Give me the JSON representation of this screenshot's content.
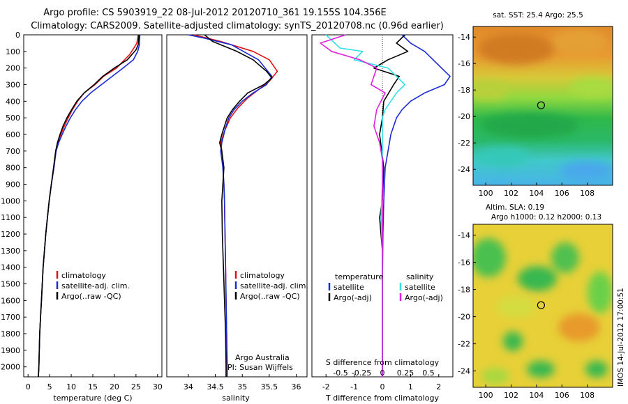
{
  "title_line1": "Argo profile: CS 5903919_22 08-Jul-2012 20120710_361 19.155S 104.356E",
  "title_line2": "Climatology: CARS2009. Satellite-adjusted climatology: synTS_20120708.nc (0.96d earlier)",
  "side_stamp": "IMOS 14-Jul-2012 17:00:51",
  "depth_ticks": [
    0,
    100,
    200,
    300,
    400,
    500,
    600,
    700,
    800,
    900,
    1000,
    1100,
    1200,
    1300,
    1400,
    1500,
    1600,
    1700,
    1800,
    1900,
    2000
  ],
  "colors": {
    "climatology": "#dd1111",
    "satellite": "#1a2ad6",
    "argo": "#000000",
    "salinity_sat": "#33e0e8",
    "salinity_argo": "#e020e0"
  },
  "chart_data": [
    {
      "type": "line",
      "xlabel": "temperature (deg C)",
      "ylabel": "",
      "xlim": [
        -1,
        31
      ],
      "ylim": [
        2060,
        0
      ],
      "x_ticks": [
        0,
        5,
        10,
        15,
        20,
        25,
        30
      ],
      "legend": [
        "climatology",
        "satellite-adj. clim.",
        "Argo(..raw -QC)"
      ],
      "series": [
        {
          "name": "climatology",
          "color": "#dd1111",
          "points": [
            [
              25.5,
              0
            ],
            [
              25.2,
              50
            ],
            [
              24.5,
              80
            ],
            [
              23.5,
              120
            ],
            [
              20.5,
              200
            ],
            [
              17.5,
              250
            ],
            [
              15.5,
              300
            ],
            [
              13.0,
              350
            ],
            [
              11.5,
              400
            ],
            [
              10.3,
              450
            ],
            [
              9.3,
              500
            ],
            [
              8.4,
              550
            ],
            [
              7.6,
              600
            ],
            [
              6.9,
              650
            ],
            [
              6.4,
              700
            ],
            [
              6.0,
              800
            ],
            [
              5.4,
              900
            ],
            [
              4.9,
              1000
            ],
            [
              4.5,
              1100
            ],
            [
              4.1,
              1200
            ],
            [
              3.8,
              1300
            ],
            [
              3.5,
              1400
            ],
            [
              3.3,
              1500
            ],
            [
              3.1,
              1600
            ],
            [
              2.9,
              1700
            ],
            [
              2.7,
              1800
            ],
            [
              2.6,
              1900
            ],
            [
              2.5,
              2000
            ],
            [
              2.4,
              2060
            ]
          ]
        },
        {
          "name": "satellite-adj. clim.",
          "color": "#1a2ad6",
          "points": [
            [
              25.9,
              0
            ],
            [
              25.8,
              60
            ],
            [
              25.4,
              100
            ],
            [
              24.4,
              150
            ],
            [
              22.0,
              200
            ],
            [
              19.5,
              250
            ],
            [
              17.0,
              300
            ],
            [
              14.5,
              350
            ],
            [
              12.5,
              400
            ],
            [
              11.0,
              450
            ],
            [
              9.8,
              500
            ],
            [
              8.8,
              550
            ],
            [
              7.9,
              600
            ],
            [
              7.1,
              650
            ],
            [
              6.5,
              700
            ],
            [
              6.0,
              800
            ],
            [
              5.4,
              900
            ],
            [
              4.9,
              1000
            ],
            [
              4.5,
              1100
            ],
            [
              4.1,
              1200
            ],
            [
              3.8,
              1300
            ],
            [
              3.5,
              1400
            ],
            [
              3.3,
              1500
            ],
            [
              3.1,
              1600
            ],
            [
              2.9,
              1700
            ],
            [
              2.7,
              1800
            ],
            [
              2.6,
              1900
            ],
            [
              2.5,
              2000
            ],
            [
              2.4,
              2060
            ]
          ]
        },
        {
          "name": "Argo(..raw -QC)",
          "color": "#000000",
          "points": [
            [
              25.7,
              0
            ],
            [
              25.5,
              60
            ],
            [
              25.0,
              90
            ],
            [
              23.0,
              150
            ],
            [
              20.0,
              200
            ],
            [
              17.3,
              250
            ],
            [
              15.3,
              300
            ],
            [
              13.0,
              350
            ],
            [
              11.3,
              400
            ],
            [
              10.1,
              450
            ],
            [
              9.0,
              500
            ],
            [
              8.1,
              550
            ],
            [
              7.4,
              600
            ],
            [
              6.8,
              650
            ],
            [
              6.4,
              700
            ],
            [
              5.9,
              800
            ],
            [
              5.4,
              900
            ],
            [
              4.9,
              1000
            ],
            [
              4.5,
              1100
            ],
            [
              4.1,
              1200
            ],
            [
              3.8,
              1300
            ],
            [
              3.5,
              1400
            ],
            [
              3.3,
              1500
            ],
            [
              3.1,
              1600
            ],
            [
              2.9,
              1700
            ],
            [
              2.7,
              1800
            ],
            [
              2.6,
              1900
            ],
            [
              2.5,
              2000
            ],
            [
              2.4,
              2060
            ]
          ]
        }
      ]
    },
    {
      "type": "line",
      "xlabel": "salinity",
      "ylabel": "",
      "xlim": [
        33.6,
        36.2
      ],
      "ylim": [
        2060,
        0
      ],
      "x_ticks": [
        34,
        34.5,
        35,
        35.5,
        36
      ],
      "legend": [
        "climatology",
        "satellite-adj. clim.",
        "Argo(..raw -QC)"
      ],
      "annotation": [
        "Argo Australia",
        "PI: Susan Wijffels"
      ],
      "series": [
        {
          "name": "climatology",
          "color": "#dd1111",
          "points": [
            [
              34.1,
              0
            ],
            [
              34.6,
              40
            ],
            [
              35.2,
              100
            ],
            [
              35.5,
              150
            ],
            [
              35.65,
              220
            ],
            [
              35.5,
              280
            ],
            [
              35.3,
              330
            ],
            [
              35.1,
              380
            ],
            [
              34.92,
              440
            ],
            [
              34.78,
              500
            ],
            [
              34.67,
              580
            ],
            [
              34.6,
              650
            ],
            [
              34.62,
              700
            ],
            [
              34.64,
              800
            ],
            [
              34.66,
              900
            ],
            [
              34.67,
              1000
            ],
            [
              34.68,
              1200
            ],
            [
              34.69,
              1400
            ],
            [
              34.7,
              1600
            ],
            [
              34.71,
              1800
            ],
            [
              34.72,
              2000
            ],
            [
              34.72,
              2060
            ]
          ]
        },
        {
          "name": "satellite-adj. clim.",
          "color": "#1a2ad6",
          "points": [
            [
              34.0,
              0
            ],
            [
              34.3,
              20
            ],
            [
              34.8,
              60
            ],
            [
              35.3,
              150
            ],
            [
              35.55,
              250
            ],
            [
              35.45,
              300
            ],
            [
              35.2,
              350
            ],
            [
              35.0,
              400
            ],
            [
              34.85,
              450
            ],
            [
              34.75,
              500
            ],
            [
              34.68,
              570
            ],
            [
              34.62,
              650
            ],
            [
              34.6,
              700
            ],
            [
              34.64,
              800
            ],
            [
              34.66,
              900
            ],
            [
              34.67,
              1000
            ],
            [
              34.68,
              1200
            ],
            [
              34.69,
              1400
            ],
            [
              34.7,
              1600
            ],
            [
              34.71,
              1800
            ],
            [
              34.72,
              2000
            ],
            [
              34.72,
              2060
            ]
          ]
        },
        {
          "name": "Argo(..raw -QC)",
          "color": "#000000",
          "points": [
            [
              34.3,
              0
            ],
            [
              34.45,
              40
            ],
            [
              34.9,
              100
            ],
            [
              35.2,
              150
            ],
            [
              35.45,
              220
            ],
            [
              35.55,
              260
            ],
            [
              35.4,
              300
            ],
            [
              35.1,
              350
            ],
            [
              34.95,
              400
            ],
            [
              34.82,
              450
            ],
            [
              34.72,
              500
            ],
            [
              34.62,
              600
            ],
            [
              34.58,
              650
            ],
            [
              34.62,
              700
            ],
            [
              34.66,
              800
            ],
            [
              34.64,
              900
            ],
            [
              34.62,
              1000
            ],
            [
              34.63,
              1200
            ],
            [
              34.65,
              1400
            ],
            [
              34.67,
              1600
            ],
            [
              34.69,
              1800
            ],
            [
              34.7,
              2000
            ],
            [
              34.7,
              2060
            ]
          ]
        }
      ]
    },
    {
      "type": "line",
      "xlabel": "T difference from climatology",
      "top_label": "S difference from climatology",
      "ylabel": "",
      "xlim": [
        -2.5,
        2.5
      ],
      "ylim": [
        2060,
        0
      ],
      "x_ticks": [
        -2,
        -1,
        0,
        1,
        2
      ],
      "top_ticks": [
        "-0.5",
        "-0.25",
        "0",
        "0.25",
        "0.5"
      ],
      "legend_headers": [
        "temperature",
        "salinity"
      ],
      "legend": [
        "satellite",
        "Argo(-adj)",
        "satellite",
        "Argo(-adj)"
      ],
      "series": [
        {
          "name": "satellite",
          "color": "#1a2ad6",
          "points": [
            [
              0.7,
              0
            ],
            [
              1.0,
              50
            ],
            [
              1.5,
              100
            ],
            [
              1.8,
              150
            ],
            [
              2.1,
              200
            ],
            [
              2.4,
              250
            ],
            [
              2.2,
              300
            ],
            [
              1.5,
              350
            ],
            [
              1.0,
              400
            ],
            [
              0.7,
              450
            ],
            [
              0.5,
              500
            ],
            [
              0.3,
              600
            ],
            [
              0.2,
              700
            ],
            [
              0.1,
              800
            ],
            [
              0.05,
              1000
            ],
            [
              0.02,
              1200
            ],
            [
              0.0,
              1500
            ],
            [
              0.0,
              2060
            ]
          ]
        },
        {
          "name": "Argo(-adj)",
          "color": "#000000",
          "points": [
            [
              0.8,
              0
            ],
            [
              0.5,
              50
            ],
            [
              0.9,
              100
            ],
            [
              0.2,
              150
            ],
            [
              -0.3,
              200
            ],
            [
              0.6,
              250
            ],
            [
              0.4,
              300
            ],
            [
              0.05,
              400
            ],
            [
              0.0,
              500
            ],
            [
              -0.1,
              600
            ],
            [
              0.05,
              800
            ],
            [
              0.0,
              1000
            ],
            [
              -0.1,
              1100
            ],
            [
              0.0,
              1300
            ],
            [
              0.0,
              2060
            ]
          ]
        },
        {
          "name": "satellite",
          "color": "#33e0e8",
          "points": [
            [
              -2.0,
              0
            ],
            [
              -1.5,
              80
            ],
            [
              -0.7,
              100
            ],
            [
              -1.0,
              150
            ],
            [
              0.2,
              200
            ],
            [
              0.8,
              300
            ],
            [
              0.5,
              350
            ],
            [
              0.1,
              450
            ],
            [
              0.0,
              500
            ],
            [
              0.0,
              700
            ],
            [
              0.0,
              900
            ],
            [
              -0.05,
              1100
            ],
            [
              0.0,
              1300
            ],
            [
              0.0,
              1600
            ],
            [
              0.0,
              2060
            ]
          ]
        },
        {
          "name": "Argo(-adj)",
          "color": "#e020e0",
          "points": [
            [
              -1.3,
              0
            ],
            [
              -2.2,
              50
            ],
            [
              -1.8,
              100
            ],
            [
              -0.8,
              150
            ],
            [
              -0.2,
              200
            ],
            [
              -0.4,
              300
            ],
            [
              0.1,
              350
            ],
            [
              -0.2,
              450
            ],
            [
              -0.3,
              550
            ],
            [
              -0.1,
              650
            ],
            [
              0.0,
              750
            ],
            [
              0.0,
              900
            ],
            [
              0.0,
              1200
            ],
            [
              0.0,
              1500
            ],
            [
              0.0,
              2060
            ]
          ]
        }
      ]
    },
    {
      "type": "heatmap",
      "title": "sat. SST: 25.4  Argo: 25.5",
      "xlim": [
        99,
        110
      ],
      "ylim": [
        -25.2,
        -13.2
      ],
      "x_ticks": [
        100,
        102,
        104,
        106,
        108
      ],
      "y_ticks": [
        -14,
        -16,
        -18,
        -20,
        -22,
        -24
      ],
      "marker": [
        104.356,
        -19.155
      ]
    },
    {
      "type": "heatmap",
      "title": "Altim. SLA: 0.19",
      "subtitle": "Argo h1000: 0.12  h2000: 0.13",
      "xlim": [
        99,
        110
      ],
      "ylim": [
        -25.2,
        -13.2
      ],
      "x_ticks": [
        100,
        102,
        104,
        106,
        108
      ],
      "y_ticks": [
        -14,
        -16,
        -18,
        -20,
        -22,
        -24
      ],
      "marker": [
        104.356,
        -19.155
      ]
    }
  ]
}
